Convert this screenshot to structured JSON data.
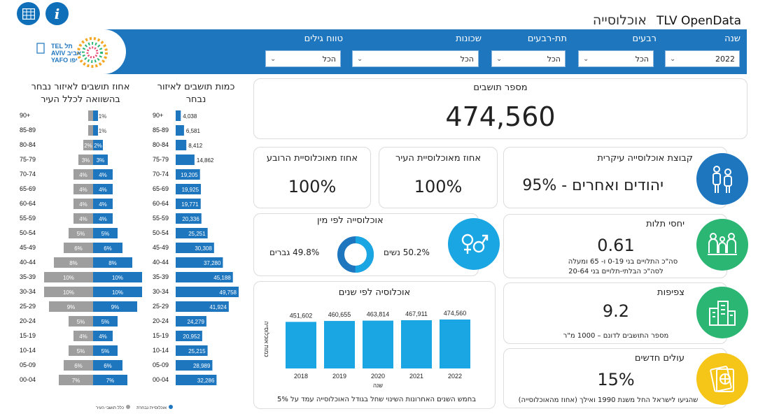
{
  "header": {
    "brand": "TLV OpenData",
    "page_title": "אוכלוסייה",
    "table_icon": "table-grid-icon",
    "info_icon": "info-icon",
    "logo_text": "TEL AVIV YAFO תל אביב יפו"
  },
  "filters": {
    "year_label": "שנה",
    "year_value": "2022",
    "quarters_label": "רבעים",
    "quarters_value": "הכל",
    "subquarters_label": "תת-רבעים",
    "subquarters_value": "הכל",
    "neighborhoods_label": "שכונות",
    "neighborhoods_value": "הכל",
    "ages_label": "טווח גילים",
    "ages_value": "הכל"
  },
  "residents": {
    "label": "מספר תושבים",
    "value": "474,560"
  },
  "quarter_pct": {
    "label": "אחוז מאוכלוסיית הרובע",
    "value": "100%"
  },
  "city_pct": {
    "label": "אחוז מאוכלוסיית העיר",
    "value": "100%"
  },
  "main_group": {
    "label": "קבוצת אוכלוסייה עיקרית",
    "value": "יהודים ואחרים - 95%"
  },
  "gender": {
    "label": "אוכלוסייה לפי מין",
    "women": "50.2% נשים",
    "men": "49.8% גברים",
    "women_share": 0.502,
    "men_share": 0.498
  },
  "dependency": {
    "label": "יחסי תלות",
    "value": "0.61",
    "note1": "סה\"כ התלויים בני 0-19 ו- 65 ומעלה",
    "note2": "לסה\"כ הבלתי-תלויים בני 20-64"
  },
  "density": {
    "label": "צפיפות",
    "value": "9.2",
    "note": "מספר התושבים לדונם – 1000 מ\"ר"
  },
  "immigrants": {
    "label": "עולים חדשים",
    "value": "15%",
    "note": "שהגיעו לישראל החל משנת 1990 ואילך (אחוז מהאוכלוסייה)"
  },
  "pyramid": {
    "title_count": "כמות תושבים לאיזור נבחר",
    "title_pct": "אחוז תושבים לאיזור נבחר בהשוואה לכלל העיר",
    "legend_selected": "אוכלוסיית נבחרת",
    "legend_city": "כלל תושבי העיר",
    "age_groups": [
      "90+",
      "85-89",
      "80-84",
      "75-79",
      "70-74",
      "65-69",
      "60-64",
      "55-59",
      "50-54",
      "45-49",
      "40-44",
      "35-39",
      "30-34",
      "25-29",
      "20-24",
      "15-19",
      "10-14",
      "05-09",
      "00-04"
    ],
    "counts": [
      4038,
      6581,
      8412,
      14862,
      19205,
      19925,
      19771,
      20336,
      25251,
      30308,
      37280,
      45188,
      49758,
      41924,
      24279,
      20952,
      25215,
      28989,
      32286
    ],
    "count_labels": [
      "4,038",
      "6,581",
      "8,412",
      "14,862",
      "19,205",
      "19,925",
      "19,771",
      "20,336",
      "25,251",
      "30,308",
      "37,280",
      "45,188",
      "49,758",
      "41,924",
      "24,279",
      "20,952",
      "25,215",
      "28,989",
      "32,286"
    ],
    "pct": [
      1,
      1,
      2,
      3,
      4,
      4,
      4,
      4,
      5,
      6,
      8,
      10,
      10,
      9,
      5,
      4,
      5,
      6,
      7
    ],
    "pct_labels": [
      "1%",
      "1%",
      "2%",
      "3%",
      "4%",
      "4%",
      "4%",
      "4%",
      "5%",
      "6%",
      "8%",
      "10%",
      "10%",
      "9%",
      "5%",
      "4%",
      "5%",
      "6%",
      "7%"
    ],
    "colors": {
      "selected": "#1e76bf",
      "city": "#9e9e9e"
    }
  },
  "by_year": {
    "title": "אוכלוסיה לפי שנים",
    "ylabel": "כמות אוכלוסייה",
    "xlabel": "שנה",
    "note": "בחמש השנים האחרונות השינוי שחל בגודל האוכלוסייה עמד על 5%"
  },
  "chart_data": {
    "type": "bar",
    "categories": [
      "2018",
      "2019",
      "2020",
      "2021",
      "2022"
    ],
    "values": [
      451602,
      460655,
      463814,
      467911,
      474560
    ],
    "value_labels": [
      "451,602",
      "460,655",
      "463,814",
      "467,911",
      "474,560"
    ],
    "title": "אוכלוסיה לפי שנים",
    "xlabel": "שנה",
    "ylabel": "כמות אוכלוסייה",
    "color": "#1aa6e2"
  },
  "colors": {
    "brand_blue": "#1e76bf",
    "icon_blue": "#1e76bf",
    "icon_cyan": "#1aa6e2",
    "icon_green": "#2bb673",
    "icon_gold": "#f5c518"
  }
}
